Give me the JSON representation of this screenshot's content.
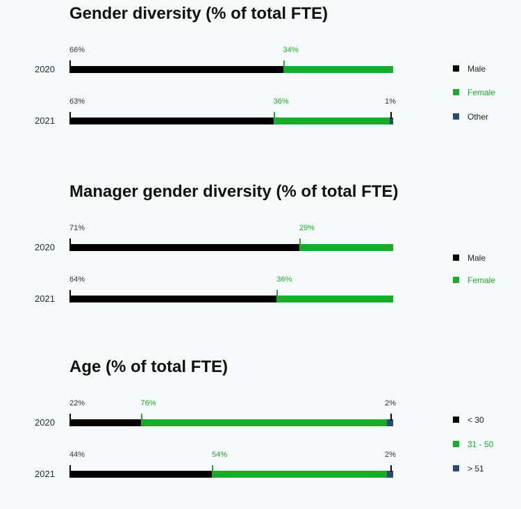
{
  "colors": {
    "male": "#000000",
    "female": "#1aab2a",
    "other": "#2f4a6b",
    "label_dark": "#333333",
    "label_green": "#1aab2a",
    "legend_text_dark": "#222222"
  },
  "chart_data": [
    {
      "type": "bar",
      "orientation": "horizontal",
      "stacked": true,
      "title": "Gender diversity (% of total FTE)",
      "categories": [
        "2020",
        "2021"
      ],
      "series": [
        {
          "name": "Male",
          "values": [
            66,
            63
          ],
          "color": "#000000",
          "labels": [
            "66%",
            "63%"
          ]
        },
        {
          "name": "Female",
          "values": [
            34,
            36
          ],
          "color": "#1aab2a",
          "labels": [
            "34%",
            "36%"
          ]
        },
        {
          "name": "Other",
          "values": [
            0,
            1
          ],
          "color": "#2f4a6b",
          "labels": [
            "",
            "1%"
          ]
        }
      ],
      "xlim": [
        0,
        100
      ],
      "grid": false,
      "legend_position": "right"
    },
    {
      "type": "bar",
      "orientation": "horizontal",
      "stacked": true,
      "title": "Manager gender diversity (% of total FTE)",
      "categories": [
        "2020",
        "2021"
      ],
      "series": [
        {
          "name": "Male",
          "values": [
            71,
            64
          ],
          "color": "#000000",
          "labels": [
            "71%",
            "64%"
          ]
        },
        {
          "name": "Female",
          "values": [
            29,
            36
          ],
          "color": "#1aab2a",
          "labels": [
            "29%",
            "36%"
          ]
        }
      ],
      "xlim": [
        0,
        100
      ],
      "grid": false,
      "legend_position": "right"
    },
    {
      "type": "bar",
      "orientation": "horizontal",
      "stacked": true,
      "title": "Age (% of total FTE)",
      "categories": [
        "2020",
        "2021"
      ],
      "series": [
        {
          "name": "< 30",
          "values": [
            22,
            44
          ],
          "color": "#000000",
          "labels": [
            "22%",
            "44%"
          ]
        },
        {
          "name": "31 - 50",
          "values": [
            76,
            54
          ],
          "color": "#1aab2a",
          "labels": [
            "76%",
            "54%"
          ]
        },
        {
          "name": "> 51",
          "values": [
            2,
            2
          ],
          "color": "#2f4a6b",
          "labels": [
            "2%",
            "2%"
          ]
        }
      ],
      "xlim": [
        0,
        100
      ],
      "grid": false,
      "legend_position": "right"
    }
  ]
}
